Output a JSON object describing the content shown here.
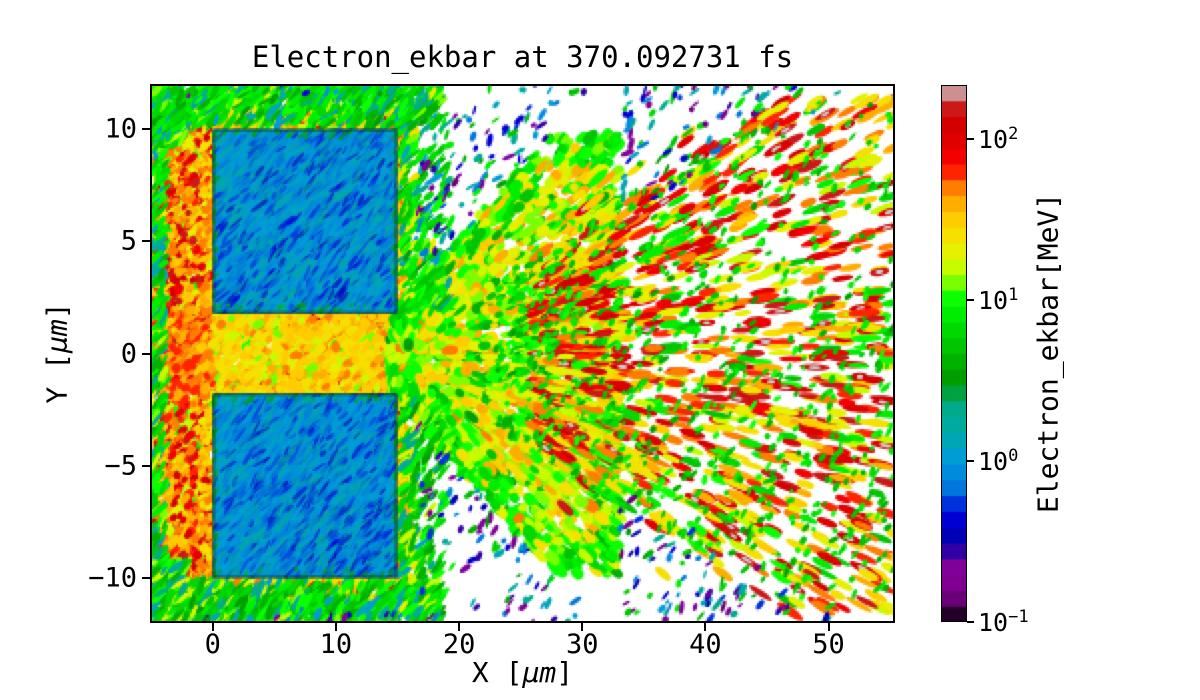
{
  "figure": {
    "background": "#ffffff",
    "text_color": "#000000"
  },
  "chart_data": {
    "type": "heatmap",
    "title": "Electron_ekbar at 370.092731 fs",
    "xlabel": "X [μm]",
    "ylabel": "Y [μm]",
    "x_range": [
      -5.1,
      55.4
    ],
    "y_range": [
      -12,
      12
    ],
    "x_ticks": [
      0,
      10,
      20,
      30,
      40,
      50
    ],
    "y_ticks": [
      10,
      5,
      0,
      -5,
      -10
    ],
    "grid": false,
    "colormap": "nipy_spectral",
    "value_label": "Electron_ekbar[MeV]",
    "value_scale": "log",
    "value_range_MeV": [
      0.1,
      215
    ],
    "contour_levels": 34,
    "time_fs": 370.092731,
    "features": {
      "target_slabs": [
        {
          "x": [
            0,
            15
          ],
          "y": [
            1.8,
            10
          ],
          "mean_energy_MeV": 1.05
        },
        {
          "x": [
            0,
            15
          ],
          "y": [
            -10,
            -1.8
          ],
          "mean_energy_MeV": 1.05
        }
      ],
      "channel": {
        "x": [
          -5,
          16.4
        ],
        "y": [
          -1.95,
          1.95
        ],
        "energy_MeV": [
          20,
          70
        ]
      },
      "left_sheath": {
        "x": [
          -4.8,
          -0.2
        ],
        "y": [
          -11,
          11
        ],
        "energy_MeV": [
          30,
          160
        ]
      },
      "slab_sheath_energy_MeV": [
        25,
        130
      ],
      "fan": {
        "origin_x": 16,
        "edge_slope": 0.34,
        "x_start": 23,
        "x_end": 55.4,
        "energy_MeV": [
          5,
          230
        ]
      },
      "halo_speckle_energy_MeV": [
        0.13,
        8
      ]
    }
  },
  "colorbar": {
    "label": "Electron_ekbar[MeV]",
    "ticks": [
      {
        "value": 100,
        "mantissa": "10",
        "exponent": "2"
      },
      {
        "value": 10,
        "mantissa": "10",
        "exponent": "1"
      },
      {
        "value": 1,
        "mantissa": "10",
        "exponent": "0"
      },
      {
        "value": 0.1,
        "mantissa": "10",
        "exponent": "−1"
      }
    ]
  }
}
